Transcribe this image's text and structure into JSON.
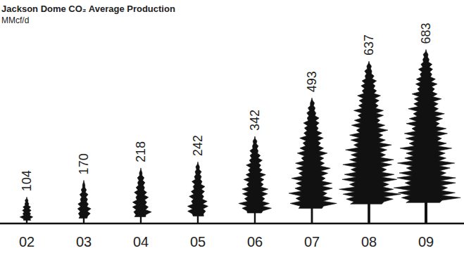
{
  "chart_data": {
    "type": "bar",
    "title": "Jackson Dome CO₂ Average Production",
    "subtitle": "MMcf/d",
    "categories": [
      "02",
      "03",
      "04",
      "05",
      "06",
      "07",
      "08",
      "09"
    ],
    "values": [
      104,
      170,
      218,
      242,
      342,
      493,
      637,
      683
    ],
    "color": "#111111",
    "ylim": [
      0,
      800
    ],
    "data_labels": true,
    "tick_labels": "x",
    "grid": false
  }
}
